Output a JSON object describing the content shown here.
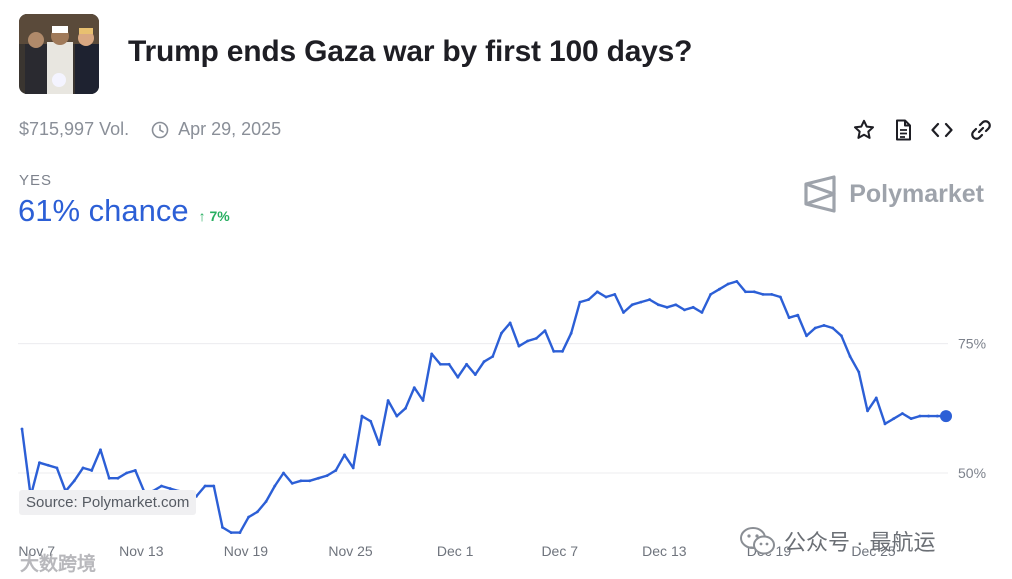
{
  "market": {
    "title": "Trump ends Gaza war by first 100 days?",
    "volume": "$715,997 Vol.",
    "end_date": "Apr 29, 2025",
    "outcome_label": "YES",
    "chance": "61% chance",
    "change": "↑ 7%",
    "brand": "Polymarket"
  },
  "icons": {
    "clock": "clock-icon",
    "star": "star-icon",
    "document": "document-icon",
    "embed": "code-icon",
    "link": "link-icon",
    "logo": "polymarket-logo"
  },
  "colors": {
    "line": "#2c5fd6",
    "change_up": "#27ae60",
    "muted": "#8a8f98"
  },
  "source_note": "Source: Polymarket.com",
  "watermarks": {
    "wechat": "公众号 · 最航运",
    "corner": "大数跨境"
  },
  "chart_data": {
    "type": "line",
    "x_tick_labels": [
      "Nov 7",
      "Nov 13",
      "Nov 19",
      "Nov 25",
      "Dec 1",
      "Dec 7",
      "Dec 13",
      "Dec 19",
      "Dec 25"
    ],
    "y_tick_labels": [
      "75%",
      "50%"
    ],
    "y_ticks": [
      75,
      50
    ],
    "ylim": [
      39,
      95
    ],
    "grid": true,
    "series": [
      {
        "values": [
          58.5,
          45.5,
          52,
          51.5,
          51,
          46.5,
          48.5,
          51,
          50.5,
          54.5,
          49,
          49,
          50,
          50.5,
          46.5,
          46.5,
          47.5,
          47,
          46.5,
          45.5,
          45.5,
          47.5,
          47.5,
          39.5,
          38.5,
          38.5,
          41.5,
          42.5,
          44.5,
          47.5,
          50,
          48,
          48.5,
          48.5,
          49,
          49.5,
          50.5,
          53.5,
          51,
          61,
          60,
          55.5,
          64,
          61,
          62.5,
          66.5,
          64,
          73,
          71,
          71,
          68.5,
          71,
          69,
          71.5,
          72.5,
          77,
          79,
          74.5,
          75.5,
          76,
          77.5,
          73.5,
          73.5,
          77,
          83,
          83.5,
          85,
          84,
          84.5,
          81,
          82.5,
          83,
          83.5,
          82.5,
          82,
          82.5,
          81.5,
          82,
          81,
          84.5,
          85.5,
          86.5,
          87,
          85,
          85,
          84.5,
          84.5,
          84,
          80,
          80.5,
          76.5,
          78,
          78.5,
          78,
          76.5,
          72.5,
          69.5,
          62,
          64.5,
          59.5,
          60.5,
          61.5,
          60.5,
          61,
          61,
          61,
          61
        ]
      }
    ]
  }
}
